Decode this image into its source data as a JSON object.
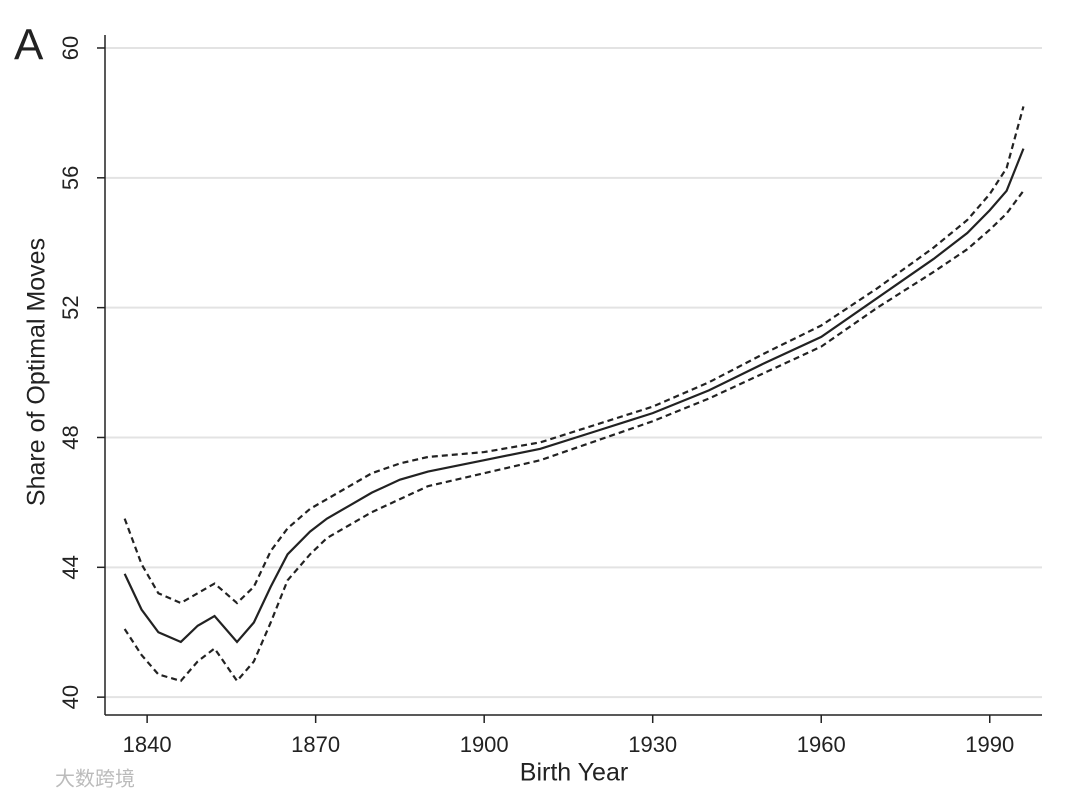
{
  "chart_data": {
    "type": "line",
    "panel_label": "A",
    "ylabel": "Share of Optimal Moves",
    "xlabel": "Birth Year",
    "watermark": "大数跨境",
    "xlim": [
      1832.5,
      1999.3
    ],
    "ylim": [
      39.45,
      60.4
    ],
    "xticks": [
      1840,
      1870,
      1900,
      1930,
      1960,
      1990
    ],
    "yticks": [
      40,
      44,
      48,
      52,
      56,
      60
    ],
    "grid": true,
    "x": [
      1836,
      1839,
      1842,
      1846,
      1849,
      1852,
      1856,
      1859,
      1862,
      1865,
      1869,
      1872,
      1876,
      1880,
      1885,
      1890,
      1900,
      1910,
      1920,
      1930,
      1940,
      1950,
      1960,
      1970,
      1980,
      1986,
      1990,
      1993,
      1996
    ],
    "series": [
      {
        "color": "#222222",
        "style": "solid",
        "values": [
          43.8,
          42.7,
          42.0,
          41.7,
          42.2,
          42.5,
          41.7,
          42.3,
          43.4,
          44.4,
          45.1,
          45.5,
          45.9,
          46.3,
          46.7,
          46.95,
          47.3,
          47.65,
          48.2,
          48.75,
          49.45,
          50.3,
          51.1,
          52.3,
          53.5,
          54.3,
          55.0,
          55.6,
          56.9
        ]
      },
      {
        "color": "#222222",
        "style": "dashed",
        "values": [
          45.5,
          44.1,
          43.2,
          42.9,
          43.2,
          43.5,
          42.9,
          43.4,
          44.5,
          45.2,
          45.8,
          46.1,
          46.5,
          46.9,
          47.2,
          47.4,
          47.55,
          47.85,
          48.4,
          48.95,
          49.7,
          50.6,
          51.45,
          52.6,
          53.85,
          54.7,
          55.5,
          56.3,
          58.2
        ]
      },
      {
        "color": "#222222",
        "style": "dashed",
        "values": [
          42.1,
          41.3,
          40.7,
          40.5,
          41.1,
          41.5,
          40.5,
          41.1,
          42.3,
          43.6,
          44.4,
          44.9,
          45.3,
          45.7,
          46.1,
          46.5,
          46.9,
          47.3,
          47.9,
          48.5,
          49.2,
          50.0,
          50.8,
          52.0,
          53.1,
          53.8,
          54.4,
          54.9,
          55.6
        ]
      }
    ]
  }
}
